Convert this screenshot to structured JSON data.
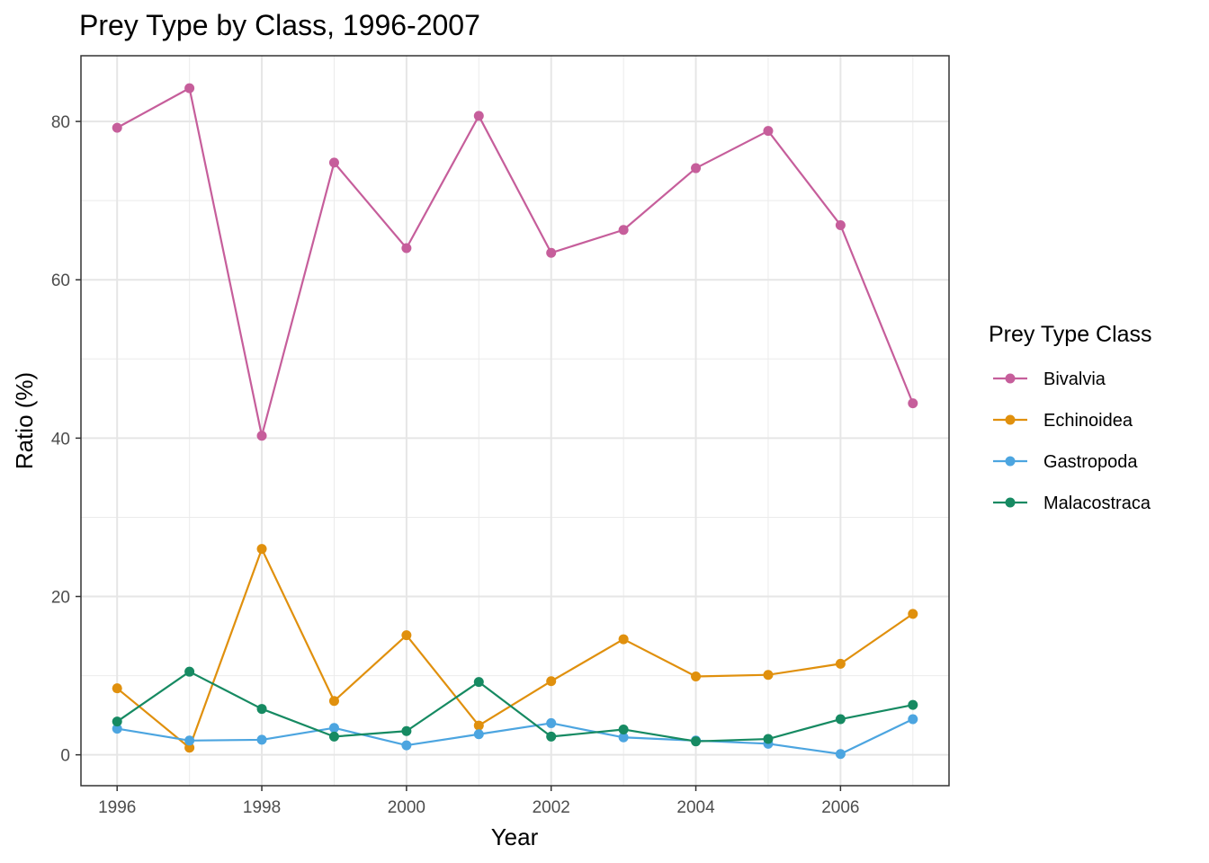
{
  "chart_data": {
    "type": "line",
    "title": "Prey Type by Class, 1996-2007",
    "xlabel": "Year",
    "ylabel": "Ratio (%)",
    "x": [
      1996,
      1997,
      1998,
      1999,
      2000,
      2001,
      2002,
      2003,
      2004,
      2005,
      2006,
      2007
    ],
    "xlim": [
      1995.5,
      2007.5
    ],
    "ylim": [
      -3.9,
      88.3
    ],
    "x_ticks": [
      1996,
      1998,
      2000,
      2002,
      2004,
      2006
    ],
    "x_tick_labels": [
      "1996",
      "1998",
      "2000",
      "2002",
      "2004",
      "2006"
    ],
    "y_ticks": [
      0,
      20,
      40,
      60,
      80
    ],
    "y_tick_labels": [
      "0",
      "20",
      "40",
      "60",
      "80"
    ],
    "grid": true,
    "legend_title": "Prey Type Class",
    "legend_position": "right",
    "series": [
      {
        "name": "Bivalvia",
        "color": "#c65e9b",
        "values": [
          79.2,
          84.2,
          40.3,
          74.8,
          64.0,
          80.7,
          63.4,
          66.3,
          74.1,
          78.8,
          66.9,
          44.4
        ]
      },
      {
        "name": "Echinoidea",
        "color": "#e0900d",
        "values": [
          8.4,
          0.9,
          26.0,
          6.8,
          15.1,
          3.7,
          9.3,
          14.6,
          9.9,
          10.1,
          11.5,
          17.8
        ]
      },
      {
        "name": "Gastropoda",
        "color": "#4ca5e0",
        "values": [
          3.3,
          1.8,
          1.9,
          3.4,
          1.2,
          2.6,
          4.0,
          2.2,
          1.8,
          1.4,
          0.1,
          4.5
        ]
      },
      {
        "name": "Malacostraca",
        "color": "#168a62",
        "values": [
          4.2,
          10.5,
          5.8,
          2.3,
          3.0,
          9.2,
          2.3,
          3.2,
          1.7,
          2.0,
          4.5,
          6.3
        ]
      }
    ]
  }
}
